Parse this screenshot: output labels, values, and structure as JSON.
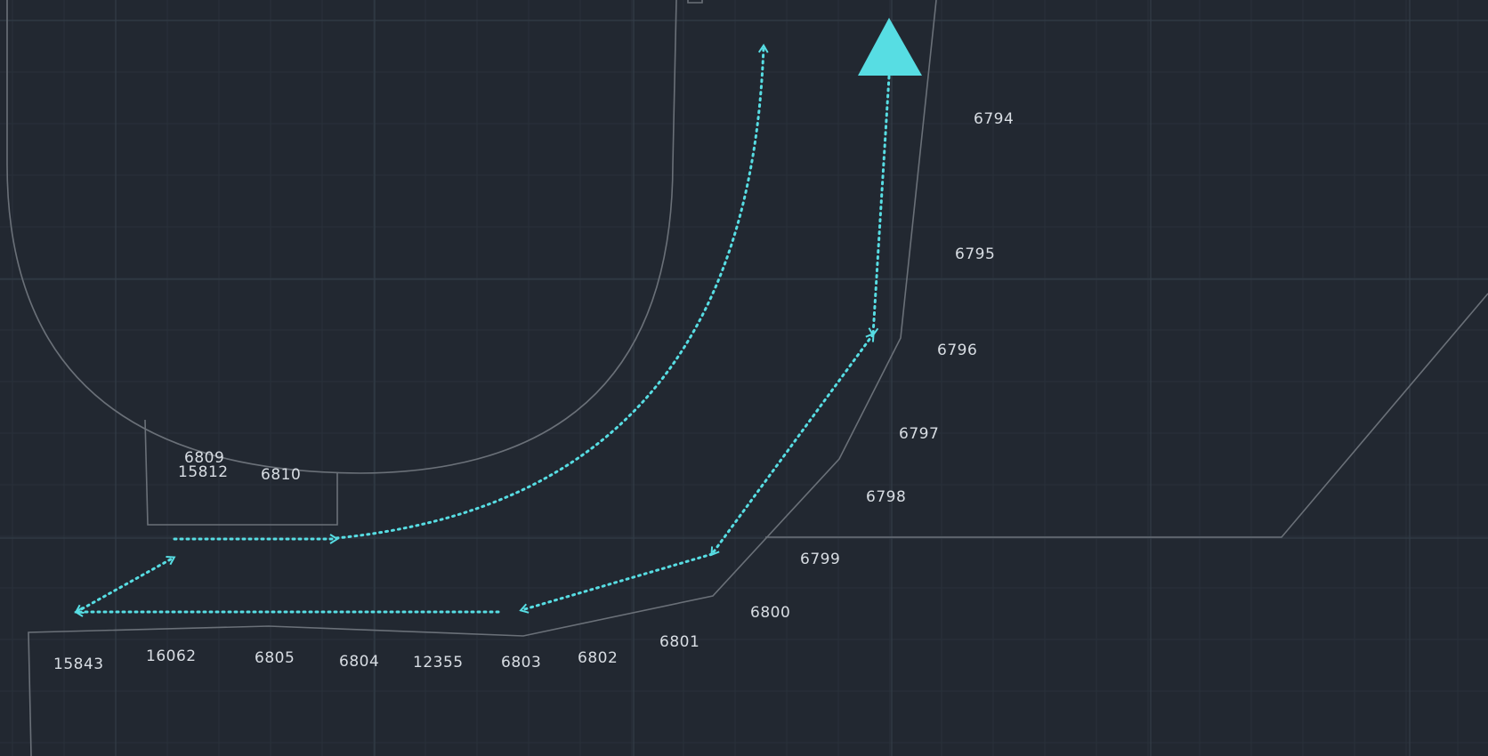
{
  "colors": {
    "background": "#222831",
    "grid_major": "#333c47",
    "grid_minor": "#29313b",
    "boundary_line": "#6a7078",
    "path_accent": "#57dde3",
    "label_text": "#d8dde3"
  },
  "north_marker": {
    "icon": "triangle-up-icon"
  },
  "labels": {
    "l6794": "6794",
    "l6795": "6795",
    "l6796": "6796",
    "l6797": "6797",
    "l6798": "6798",
    "l6799": "6799",
    "l6800": "6800",
    "l6801": "6801",
    "l6802": "6802",
    "l6803": "6803",
    "l12355": "12355",
    "l6804": "6804",
    "l6805": "6805",
    "l16062": "16062",
    "l15843": "15843",
    "l6809": "6809",
    "l15812": "15812",
    "l6810": "6810"
  }
}
